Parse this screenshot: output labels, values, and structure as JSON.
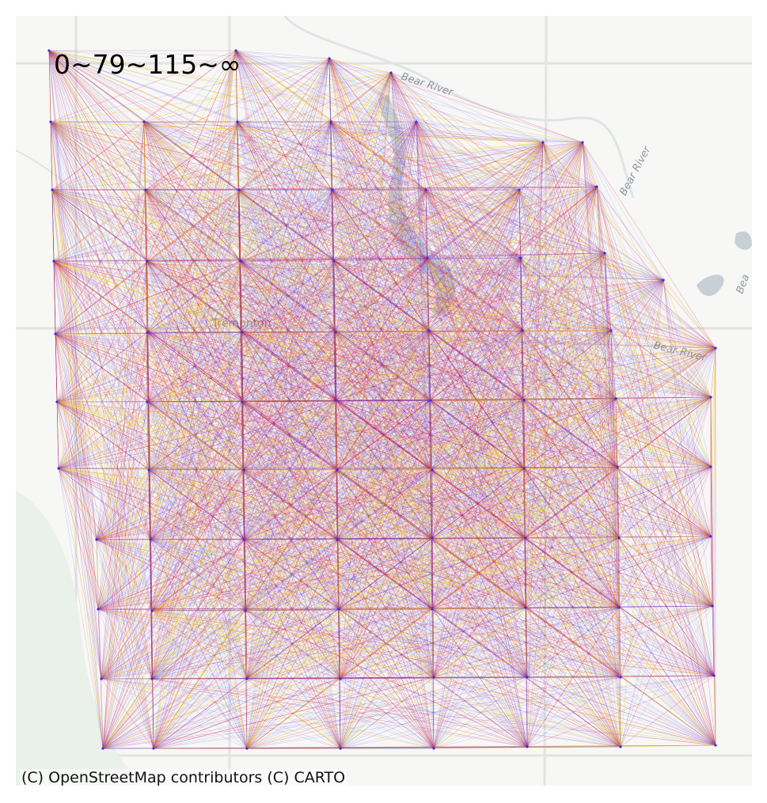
{
  "legend": {
    "breaks_label": "0~79~115~∞"
  },
  "attribution": "(C) OpenStreetMap contributors (C) CARTO",
  "basemap": {
    "labels": [
      {
        "text": "Bear River"
      },
      {
        "text": "Bear River"
      },
      {
        "text": "Bear River"
      },
      {
        "text": "Bea"
      },
      {
        "text": "Tremonton"
      }
    ]
  },
  "colors": {
    "low": "#3a2cf0",
    "mid": "#e0204a",
    "high": "#f5d000",
    "basemap_bg": "#f7f7f5",
    "water": "#c6d0d6",
    "roads": "#e3e3e3"
  },
  "network": {
    "node_rows": [
      [
        [
          62,
          64
        ],
        [
          298,
          64
        ],
        [
          416,
          74
        ],
        [
          494,
          92
        ]
      ],
      [
        [
          64,
          154
        ],
        [
          182,
          154
        ],
        [
          300,
          154
        ],
        [
          418,
          154
        ],
        [
          526,
          154
        ],
        [
          686,
          180
        ],
        [
          736,
          180
        ]
      ],
      [
        [
          66,
          240
        ],
        [
          184,
          240
        ],
        [
          302,
          240
        ],
        [
          420,
          240
        ],
        [
          538,
          240
        ],
        [
          656,
          240
        ],
        [
          754,
          236
        ]
      ],
      [
        [
          68,
          330
        ],
        [
          186,
          330
        ],
        [
          304,
          330
        ],
        [
          422,
          330
        ],
        [
          540,
          326
        ],
        [
          658,
          326
        ],
        [
          764,
          320
        ],
        [
          838,
          354
        ]
      ],
      [
        [
          70,
          422
        ],
        [
          186,
          420
        ],
        [
          306,
          420
        ],
        [
          424,
          420
        ],
        [
          542,
          418
        ],
        [
          660,
          418
        ],
        [
          772,
          418
        ],
        [
          904,
          440
        ]
      ],
      [
        [
          72,
          508
        ],
        [
          186,
          508
        ],
        [
          306,
          508
        ],
        [
          424,
          506
        ],
        [
          544,
          506
        ],
        [
          662,
          506
        ],
        [
          778,
          504
        ],
        [
          898,
          502
        ]
      ],
      [
        [
          74,
          592
        ],
        [
          188,
          594
        ],
        [
          308,
          594
        ],
        [
          426,
          594
        ],
        [
          546,
          594
        ],
        [
          662,
          592
        ],
        [
          780,
          590
        ],
        [
          898,
          590
        ]
      ],
      [
        [
          122,
          682
        ],
        [
          190,
          682
        ],
        [
          308,
          682
        ],
        [
          426,
          682
        ],
        [
          546,
          680
        ],
        [
          664,
          680
        ],
        [
          782,
          680
        ],
        [
          898,
          678
        ]
      ],
      [
        [
          124,
          770
        ],
        [
          192,
          772
        ],
        [
          310,
          772
        ],
        [
          428,
          770
        ],
        [
          546,
          770
        ],
        [
          664,
          768
        ],
        [
          782,
          768
        ],
        [
          900,
          766
        ]
      ],
      [
        [
          128,
          858
        ],
        [
          192,
          858
        ],
        [
          312,
          858
        ],
        [
          430,
          858
        ],
        [
          548,
          856
        ],
        [
          666,
          856
        ],
        [
          784,
          856
        ],
        [
          902,
          854
        ]
      ],
      [
        [
          130,
          946
        ],
        [
          194,
          946
        ],
        [
          312,
          946
        ],
        [
          430,
          946
        ],
        [
          548,
          946
        ],
        [
          666,
          944
        ],
        [
          784,
          944
        ],
        [
          904,
          942
        ]
      ]
    ]
  }
}
